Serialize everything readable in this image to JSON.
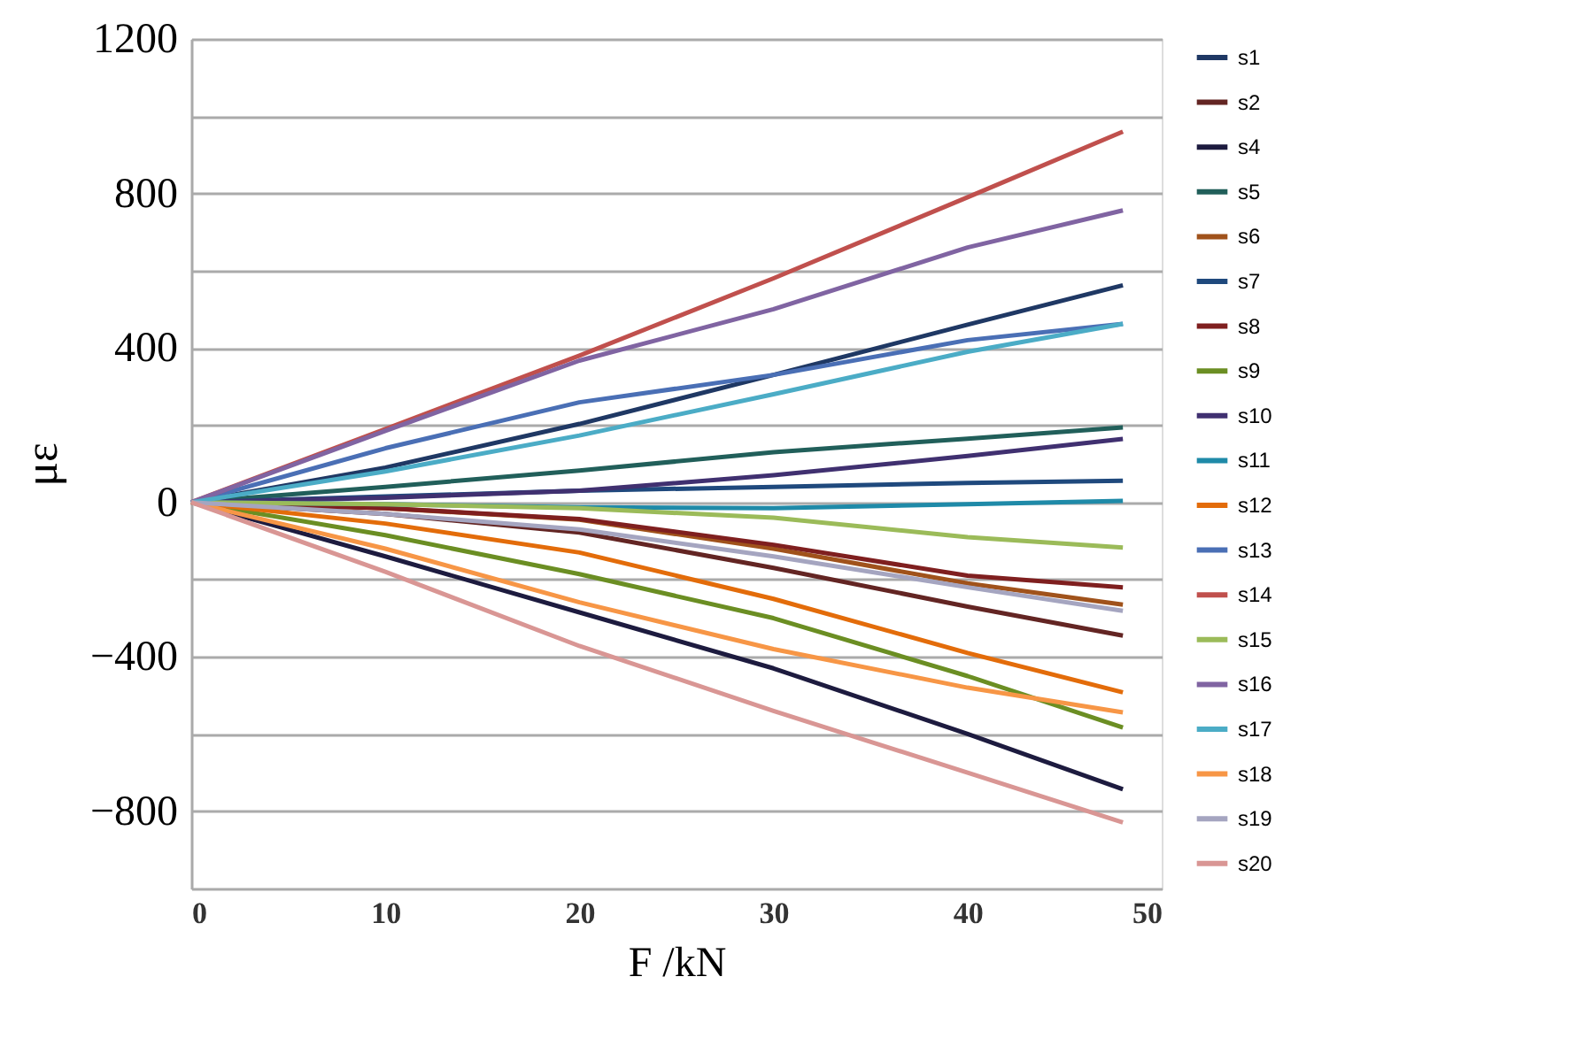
{
  "chart_data": {
    "type": "line",
    "xlabel": "F /kN",
    "ylabel": "με",
    "xlim": [
      0,
      50
    ],
    "xticks": [
      0,
      10,
      20,
      30,
      40,
      50
    ],
    "ylim": [
      -1000,
      1200
    ],
    "yticks": [
      {
        "value": -1000,
        "label": null
      },
      -800,
      {
        "value": -600,
        "label": null
      },
      -400,
      {
        "value": -200,
        "label": null
      },
      0,
      {
        "value": 200,
        "label": null
      },
      400,
      {
        "value": 600,
        "label": null
      },
      800,
      {
        "value": 1000,
        "label": null
      },
      1200
    ],
    "grid": "y",
    "legend": "right",
    "marker": "none",
    "line_style": "solid",
    "x": [
      0,
      10,
      20,
      30,
      40,
      48
    ],
    "series": [
      {
        "name": "s1",
        "color": "#1f3864",
        "values": [
          0,
          90,
          203,
          330,
          460,
          562
        ]
      },
      {
        "name": "s2",
        "color": "#632523",
        "values": [
          0,
          -30,
          -78,
          -170,
          -270,
          -345
        ]
      },
      {
        "name": "s4",
        "color": "#1d1b3f",
        "values": [
          0,
          -140,
          -285,
          -430,
          -600,
          -743
        ]
      },
      {
        "name": "s5",
        "color": "#215f5a",
        "values": [
          0,
          40,
          82,
          130,
          165,
          194
        ]
      },
      {
        "name": "s6",
        "color": "#a0521b",
        "values": [
          0,
          -15,
          -45,
          -120,
          -210,
          -265
        ]
      },
      {
        "name": "s7",
        "color": "#1f497d",
        "values": [
          0,
          15,
          30,
          40,
          50,
          56
        ]
      },
      {
        "name": "s8",
        "color": "#7f1f1f",
        "values": [
          0,
          -15,
          -43,
          -110,
          -190,
          -220
        ]
      },
      {
        "name": "s9",
        "color": "#6b8e23",
        "values": [
          0,
          -85,
          -186,
          -300,
          -450,
          -583
        ]
      },
      {
        "name": "s10",
        "color": "#403070",
        "values": [
          0,
          12,
          30,
          70,
          120,
          164
        ]
      },
      {
        "name": "s11",
        "color": "#1f8aa8",
        "values": [
          0,
          -5,
          -13,
          -15,
          -5,
          4
        ]
      },
      {
        "name": "s12",
        "color": "#e36c0a",
        "values": [
          0,
          -55,
          -130,
          -250,
          -390,
          -492
        ]
      },
      {
        "name": "s13",
        "color": "#4a6fb5",
        "values": [
          0,
          140,
          259,
          330,
          420,
          462
        ]
      },
      {
        "name": "s14",
        "color": "#c0504d",
        "values": [
          0,
          190,
          380,
          580,
          790,
          960
        ]
      },
      {
        "name": "s15",
        "color": "#9bbb59",
        "values": [
          0,
          -5,
          -15,
          -40,
          -90,
          -117
        ]
      },
      {
        "name": "s16",
        "color": "#8064a2",
        "values": [
          0,
          185,
          367,
          500,
          660,
          756
        ]
      },
      {
        "name": "s17",
        "color": "#4bacc6",
        "values": [
          0,
          80,
          173,
          280,
          390,
          462
        ]
      },
      {
        "name": "s18",
        "color": "#f79646",
        "values": [
          0,
          -120,
          -259,
          -380,
          -480,
          -544
        ]
      },
      {
        "name": "s19",
        "color": "#a5a5c0",
        "values": [
          0,
          -30,
          -70,
          -140,
          -220,
          -281
        ]
      },
      {
        "name": "s20",
        "color": "#d99694",
        "values": [
          0,
          -180,
          -372,
          -540,
          -700,
          -829
        ]
      }
    ]
  }
}
